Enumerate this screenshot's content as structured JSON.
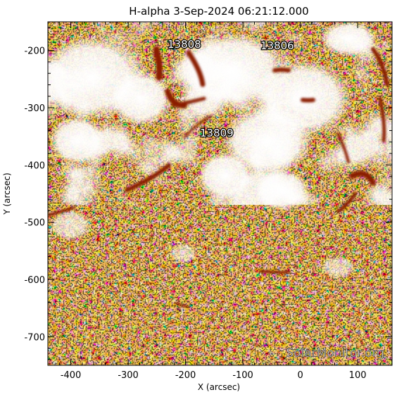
{
  "title": "H-alpha   3-Sep-2024 06:21:12.000",
  "xlabel": "X (arcsec)",
  "ylabel": "Y (arcsec)",
  "x_range": [
    -440,
    160
  ],
  "y_range": [
    -750,
    -150
  ],
  "x_ticks": [
    "-400",
    "-300",
    "-200",
    "-100",
    "0",
    "100"
  ],
  "y_ticks": [
    "-200",
    "-300",
    "-400",
    "-500",
    "-600",
    "-700"
  ],
  "regions": [
    {
      "id": "13808",
      "label": "13808"
    },
    {
      "id": "13806",
      "label": "13806"
    },
    {
      "id": "13809",
      "label": "13809"
    }
  ],
  "watermark": "SolarMonitor.org",
  "colors": {
    "background_plasma": "#e87b1e",
    "bright_plage": "#ffffff",
    "filament": "#8a1e06",
    "pale": "#fde1bf",
    "axes": "#000000"
  }
}
